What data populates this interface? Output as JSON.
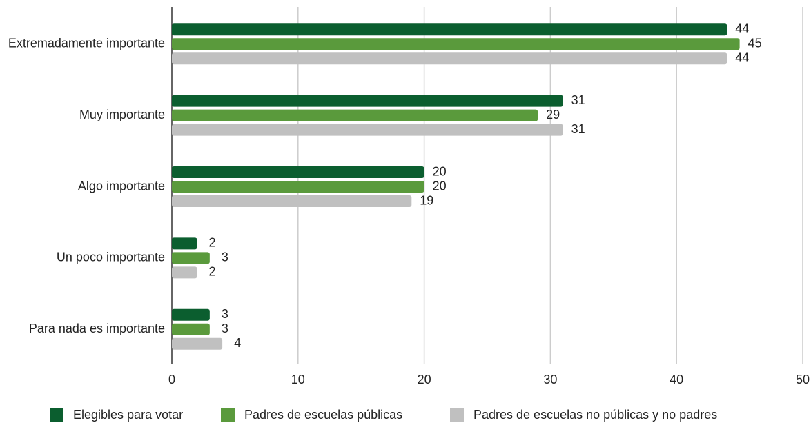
{
  "chart_data": {
    "type": "bar",
    "orientation": "horizontal",
    "categories": [
      "Extremadamente importante",
      "Muy importante",
      "Algo importante",
      "Un poco importante",
      "Para nada es importante"
    ],
    "series": [
      {
        "name": "Elegibles para votar",
        "color": "#0b5e2f",
        "values": [
          44,
          31,
          20,
          2,
          3
        ]
      },
      {
        "name": "Padres de escuelas públicas",
        "color": "#5a9a3c",
        "values": [
          45,
          29,
          20,
          3,
          3
        ]
      },
      {
        "name": "Padres de escuelas no públicas y no padres",
        "color": "#c0c0c0",
        "values": [
          44,
          31,
          19,
          2,
          4
        ]
      }
    ],
    "xlim": [
      0,
      50
    ],
    "xticks": [
      0,
      10,
      20,
      30,
      40,
      50
    ],
    "grid": true,
    "legend": "bottom"
  }
}
